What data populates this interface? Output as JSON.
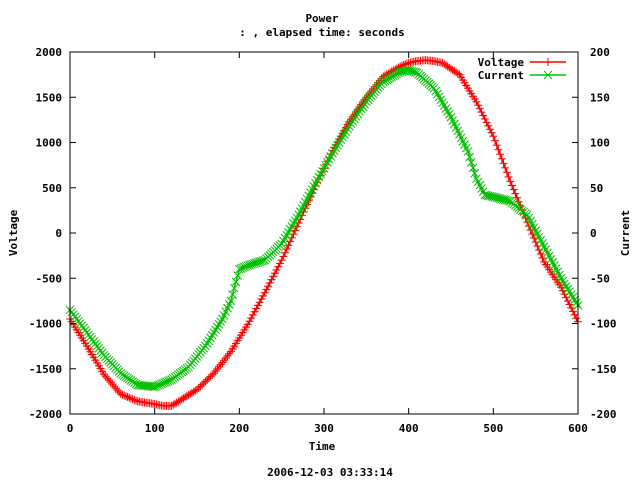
{
  "chart_data": {
    "type": "line",
    "title": "Power",
    "subtitle": ": , elapsed time:  seconds",
    "footer": "2006-12-03 03:33:14",
    "xlabel": "Time",
    "ylabel": "Voltage",
    "y2label": "Current",
    "xlim": [
      0,
      600
    ],
    "ylim": [
      -2000,
      2000
    ],
    "y2lim": [
      -200,
      200
    ],
    "x_ticks": [
      0,
      100,
      200,
      300,
      400,
      500,
      600
    ],
    "y_ticks": [
      -2000,
      -1500,
      -1000,
      -500,
      0,
      500,
      1000,
      1500,
      2000
    ],
    "y2_ticks": [
      -200,
      -150,
      -100,
      -50,
      0,
      50,
      100,
      150,
      200
    ],
    "legend_position": "top-right",
    "grid": false,
    "series": [
      {
        "name": "Voltage",
        "axis": "y",
        "color": "#ff0000",
        "marker": "plus",
        "x": [
          0,
          20,
          40,
          60,
          80,
          100,
          110,
          120,
          130,
          150,
          170,
          190,
          210,
          230,
          250,
          270,
          290,
          310,
          330,
          350,
          370,
          390,
          400,
          410,
          420,
          430,
          440,
          460,
          480,
          500,
          520,
          540,
          560,
          580,
          600
        ],
        "values": [
          -950,
          -1250,
          -1560,
          -1780,
          -1860,
          -1890,
          -1910,
          -1910,
          -1850,
          -1730,
          -1550,
          -1310,
          -1010,
          -660,
          -300,
          110,
          520,
          910,
          1230,
          1500,
          1730,
          1840,
          1880,
          1900,
          1910,
          1900,
          1880,
          1750,
          1450,
          1070,
          570,
          120,
          -320,
          -600,
          -980
        ]
      },
      {
        "name": "Current",
        "axis": "y2",
        "color": "#00c000",
        "marker": "cross",
        "x": [
          0,
          20,
          40,
          60,
          80,
          100,
          120,
          140,
          160,
          180,
          190,
          200,
          210,
          230,
          250,
          270,
          290,
          310,
          330,
          350,
          370,
          390,
          400,
          410,
          430,
          450,
          470,
          480,
          490,
          500,
          520,
          540,
          560,
          580,
          600
        ],
        "values": [
          -85,
          -110,
          -135,
          -155,
          -168,
          -170,
          -162,
          -148,
          -125,
          -95,
          -75,
          -40,
          -36,
          -30,
          -12,
          20,
          55,
          88,
          118,
          145,
          167,
          178,
          180,
          177,
          160,
          128,
          90,
          60,
          42,
          40,
          35,
          20,
          -15,
          -50,
          -80
        ]
      }
    ]
  }
}
